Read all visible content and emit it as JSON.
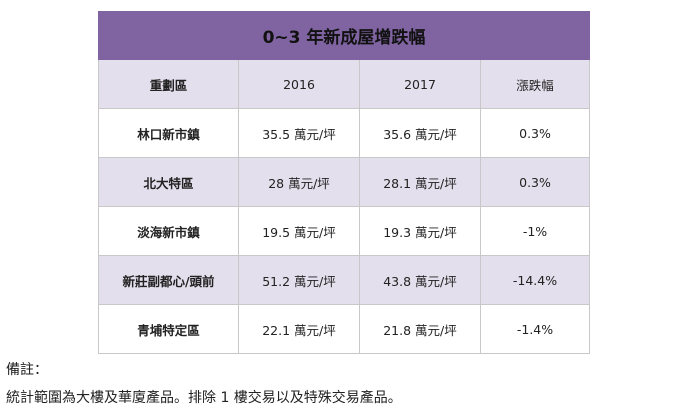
{
  "table": {
    "title": "0~3 年新成屋增跌幅",
    "headers": [
      "重劃區",
      "2016",
      "2017",
      "漲跌幅"
    ],
    "rows": [
      {
        "region": "林口新市鎮",
        "y2016": "35.5 萬元/坪",
        "y2017": "35.6 萬元/坪",
        "change": "0.3%"
      },
      {
        "region": "北大特區",
        "y2016": "28 萬元/坪",
        "y2017": "28.1 萬元/坪",
        "change": "0.3%"
      },
      {
        "region": "淡海新市鎮",
        "y2016": "19.5 萬元/坪",
        "y2017": "19.3 萬元/坪",
        "change": "-1%"
      },
      {
        "region": "新莊副都心/頭前",
        "y2016": "51.2 萬元/坪",
        "y2017": "43.8 萬元/坪",
        "change": "-14.4%"
      },
      {
        "region": "青埔特定區",
        "y2016": "22.1 萬元/坪",
        "y2017": "21.8 萬元/坪",
        "change": "-1.4%"
      }
    ]
  },
  "notes": {
    "label": "備註：",
    "text": "統計範圍為大樓及華廈產品。排除 1 樓交易以及特殊交易產品。"
  },
  "colors": {
    "title_bg": "#8064a2",
    "shade_bg": "#e4dfec",
    "border": "#c8c8c8"
  }
}
